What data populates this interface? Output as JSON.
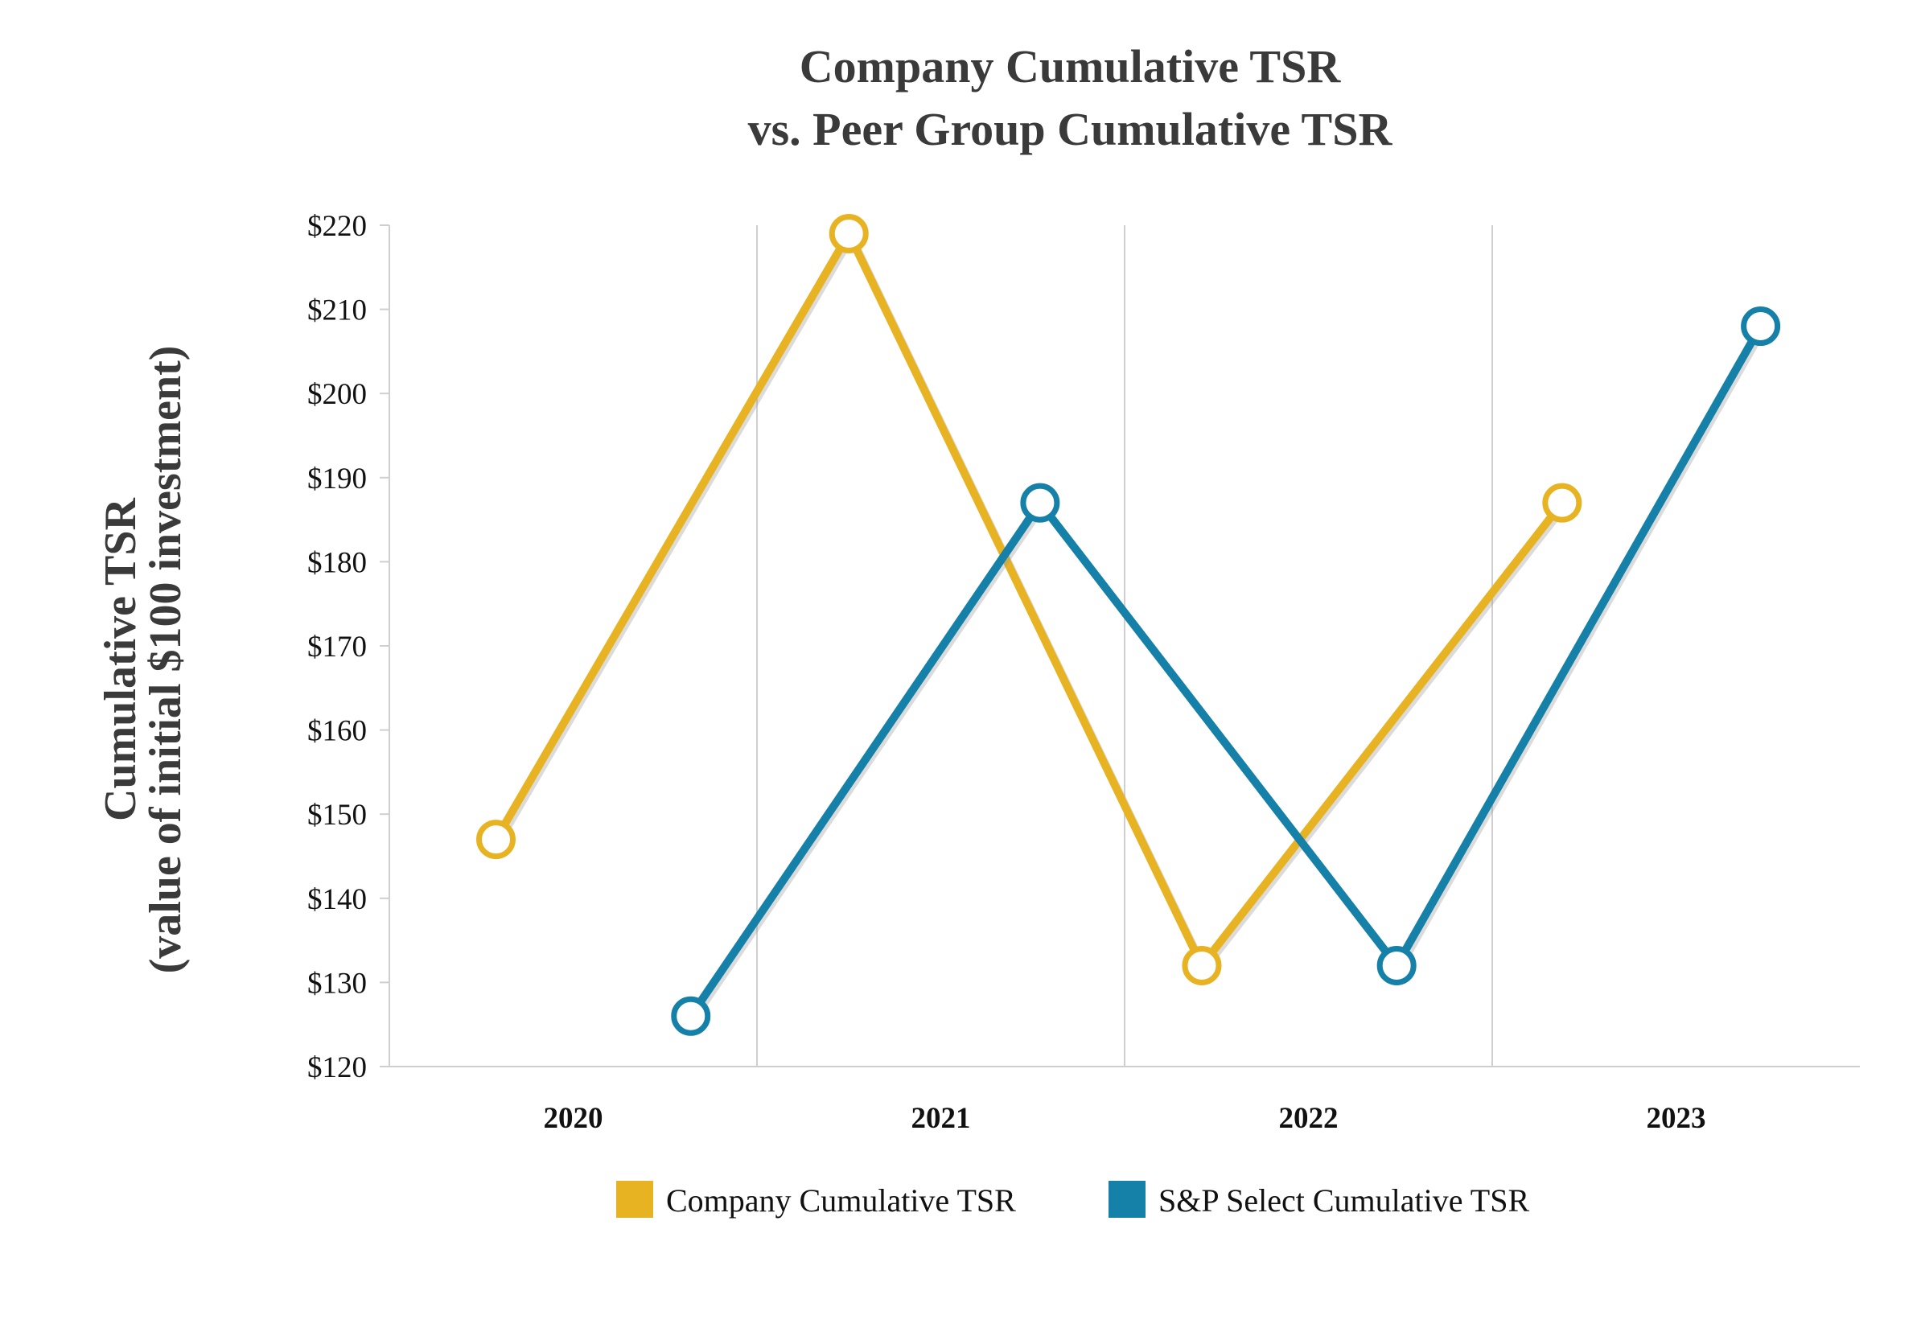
{
  "chart_data": {
    "type": "line",
    "title": [
      "Company Cumulative TSR",
      "vs. Peer Group Cumulative TSR"
    ],
    "ylabel": [
      "Cumulative TSR",
      "(value of initial $100 investment)"
    ],
    "xlabel": "",
    "categories": [
      "2020",
      "2021",
      "2022",
      "2023"
    ],
    "ylim": [
      120,
      220
    ],
    "yticks": [
      "$120",
      "$130",
      "$140",
      "$150",
      "$160",
      "$170",
      "$180",
      "$190",
      "$200",
      "$210",
      "$220"
    ],
    "grid": "vertical category separators",
    "legend_position": "bottom",
    "series": [
      {
        "name": "Company Cumulative TSR",
        "color": "#E8B323",
        "values": [
          147,
          219,
          132,
          187
        ]
      },
      {
        "name": "S&P Select Cumulative TSR",
        "color": "#1580A8",
        "values": [
          126,
          187,
          132,
          208
        ]
      }
    ]
  }
}
